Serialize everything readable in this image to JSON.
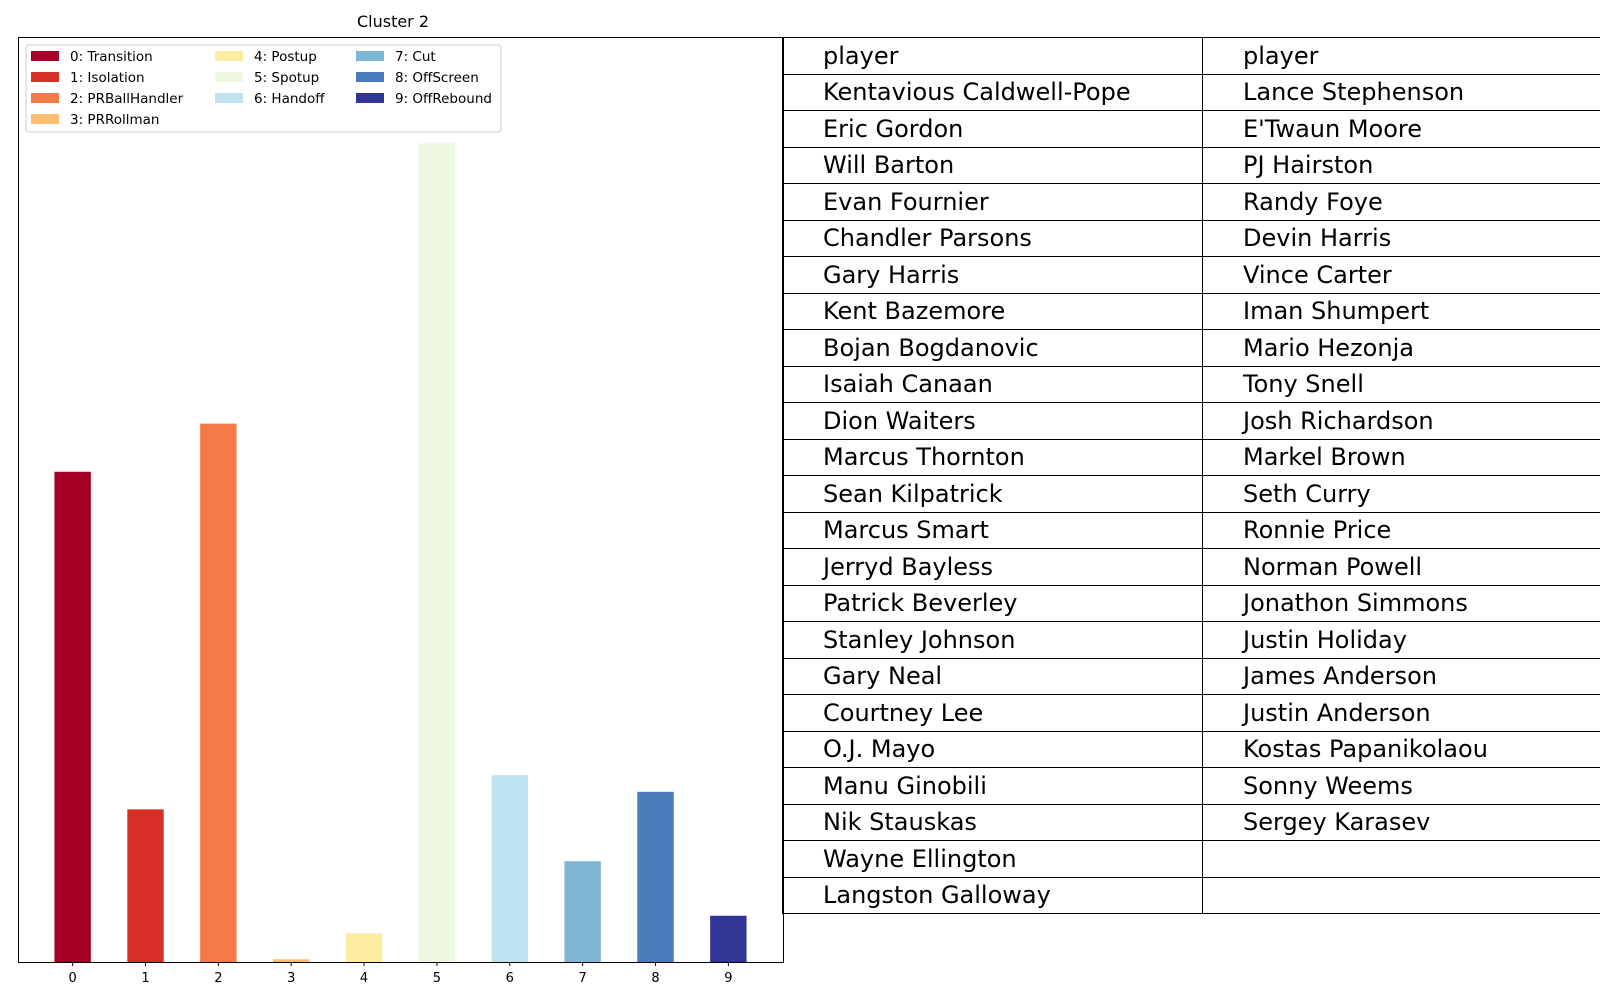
{
  "chart_data": {
    "type": "bar",
    "title": "Cluster 2",
    "categories": [
      "0",
      "1",
      "2",
      "3",
      "4",
      "5",
      "6",
      "7",
      "8",
      "9"
    ],
    "values": [
      0.53,
      0.165,
      0.582,
      0.003,
      0.031,
      0.885,
      0.202,
      0.109,
      0.184,
      0.05
    ],
    "ylim": [
      0,
      1
    ],
    "colors": [
      "#a50026",
      "#d73027",
      "#f67a49",
      "#fdbf6f",
      "#feeda1",
      "#edf8df",
      "#bfe3ef",
      "#7fb6d6",
      "#4a7bbb",
      "#313695"
    ],
    "legend": {
      "placement": "upper-left",
      "entries": [
        "0: Transition",
        "1: Isolation",
        "2: PRBallHandler",
        "3: PRRollman",
        "4: Postup",
        "5: Spotup",
        "6: Handoff",
        "7: Cut",
        "8: OffScreen",
        "9: OffRebound"
      ]
    },
    "grid": false
  },
  "table": {
    "rows": [
      [
        "player",
        "player"
      ],
      [
        "Kentavious Caldwell-Pope",
        "Lance Stephenson"
      ],
      [
        "Eric Gordon",
        "E'Twaun Moore"
      ],
      [
        "Will Barton",
        "PJ Hairston"
      ],
      [
        "Evan Fournier",
        "Randy Foye"
      ],
      [
        "Chandler Parsons",
        "Devin Harris"
      ],
      [
        "Gary Harris",
        "Vince Carter"
      ],
      [
        "Kent Bazemore",
        "Iman Shumpert"
      ],
      [
        "Bojan Bogdanovic",
        "Mario Hezonja"
      ],
      [
        "Isaiah Canaan",
        "Tony Snell"
      ],
      [
        "Dion Waiters",
        "Josh Richardson"
      ],
      [
        "Marcus Thornton",
        "Markel Brown"
      ],
      [
        "Sean Kilpatrick",
        "Seth Curry"
      ],
      [
        "Marcus Smart",
        "Ronnie Price"
      ],
      [
        "Jerryd Bayless",
        "Norman Powell"
      ],
      [
        "Patrick Beverley",
        "Jonathon Simmons"
      ],
      [
        "Stanley Johnson",
        "Justin Holiday"
      ],
      [
        "Gary Neal",
        "James Anderson"
      ],
      [
        "Courtney Lee",
        "Justin Anderson"
      ],
      [
        "O.J. Mayo",
        "Kostas Papanikolaou"
      ],
      [
        "Manu Ginobili",
        "Sonny Weems"
      ],
      [
        "Nik Stauskas",
        "Sergey Karasev"
      ],
      [
        "Wayne Ellington",
        ""
      ],
      [
        "Langston Galloway",
        ""
      ]
    ]
  }
}
